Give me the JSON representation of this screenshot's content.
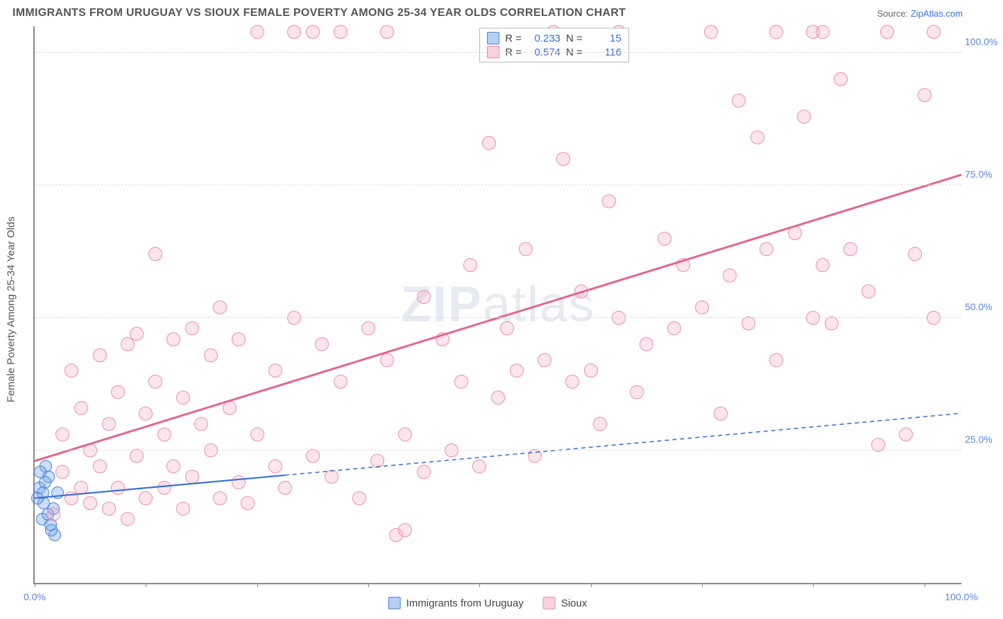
{
  "title": "IMMIGRANTS FROM URUGUAY VS SIOUX FEMALE POVERTY AMONG 25-34 YEAR OLDS CORRELATION CHART",
  "source_prefix": "Source: ",
  "source_link": "ZipAtlas.com",
  "ylabel": "Female Poverty Among 25-34 Year Olds",
  "watermark_bold": "ZIP",
  "watermark_rest": "atlas",
  "xlim": [
    0,
    100
  ],
  "ylim": [
    0,
    105
  ],
  "y_ticks": [
    25,
    50,
    75,
    100
  ],
  "y_tick_labels": [
    "25.0%",
    "50.0%",
    "75.0%",
    "100.0%"
  ],
  "x_ticks": [
    0,
    12,
    24,
    36,
    48,
    60,
    72,
    84,
    96
  ],
  "x_tick_labels_first": "0.0%",
  "x_tick_labels_last": "100.0%",
  "colors": {
    "blue_fill": "rgba(107,159,232,0.35)",
    "blue_stroke": "#4a85d6",
    "pink_fill": "rgba(244,160,185,0.28)",
    "pink_stroke": "#e98fae",
    "trend_pink": "#e5648e",
    "trend_blue": "#3b6fd6",
    "tick_text": "#5a86d8",
    "grid": "#ddd"
  },
  "series": [
    {
      "name": "Immigrants from Uruguay",
      "class": "blue",
      "R": "0.233",
      "N": "15",
      "trend": {
        "x1": 0,
        "y1": 16,
        "x2": 100,
        "y2": 32,
        "solid_until_x": 27,
        "dash": "6,5",
        "width": 2.2
      },
      "points": [
        [
          0.5,
          18
        ],
        [
          1,
          15
        ],
        [
          1.2,
          22
        ],
        [
          0.8,
          12
        ],
        [
          1.5,
          20
        ],
        [
          2,
          14
        ],
        [
          1.8,
          10
        ],
        [
          2.5,
          17
        ],
        [
          0.3,
          16
        ],
        [
          1.1,
          19
        ],
        [
          2.2,
          9
        ],
        [
          0.6,
          21
        ],
        [
          1.4,
          13
        ],
        [
          0.9,
          17
        ],
        [
          1.7,
          11
        ]
      ]
    },
    {
      "name": "Sioux",
      "class": "pink",
      "R": "0.574",
      "N": "116",
      "trend": {
        "x1": 0,
        "y1": 23,
        "x2": 100,
        "y2": 77,
        "solid_until_x": 100,
        "dash": "",
        "width": 3
      },
      "points": [
        [
          2,
          13
        ],
        [
          3,
          21
        ],
        [
          3,
          28
        ],
        [
          4,
          16
        ],
        [
          4,
          40
        ],
        [
          5,
          18
        ],
        [
          5,
          33
        ],
        [
          6,
          15
        ],
        [
          6,
          25
        ],
        [
          7,
          22
        ],
        [
          7,
          43
        ],
        [
          8,
          14
        ],
        [
          8,
          30
        ],
        [
          9,
          18
        ],
        [
          9,
          36
        ],
        [
          10,
          12
        ],
        [
          10,
          45
        ],
        [
          11,
          24
        ],
        [
          11,
          47
        ],
        [
          12,
          16
        ],
        [
          12,
          32
        ],
        [
          13,
          38
        ],
        [
          13,
          62
        ],
        [
          14,
          18
        ],
        [
          14,
          28
        ],
        [
          15,
          22
        ],
        [
          15,
          46
        ],
        [
          16,
          14
        ],
        [
          16,
          35
        ],
        [
          17,
          20
        ],
        [
          17,
          48
        ],
        [
          18,
          30
        ],
        [
          19,
          25
        ],
        [
          19,
          43
        ],
        [
          20,
          16
        ],
        [
          20,
          52
        ],
        [
          21,
          33
        ],
        [
          22,
          19
        ],
        [
          22,
          46
        ],
        [
          23,
          15
        ],
        [
          24,
          28
        ],
        [
          24,
          104
        ],
        [
          26,
          22
        ],
        [
          26,
          40
        ],
        [
          27,
          18
        ],
        [
          28,
          50
        ],
        [
          28,
          104
        ],
        [
          30,
          24
        ],
        [
          30,
          104
        ],
        [
          31,
          45
        ],
        [
          32,
          20
        ],
        [
          33,
          38
        ],
        [
          33,
          104
        ],
        [
          35,
          16
        ],
        [
          36,
          48
        ],
        [
          37,
          23
        ],
        [
          38,
          42
        ],
        [
          38,
          104
        ],
        [
          39,
          9
        ],
        [
          40,
          28
        ],
        [
          40,
          10
        ],
        [
          42,
          21
        ],
        [
          42,
          54
        ],
        [
          44,
          46
        ],
        [
          45,
          25
        ],
        [
          46,
          38
        ],
        [
          47,
          60
        ],
        [
          48,
          22
        ],
        [
          49,
          83
        ],
        [
          50,
          35
        ],
        [
          51,
          48
        ],
        [
          52,
          40
        ],
        [
          53,
          63
        ],
        [
          54,
          24
        ],
        [
          55,
          42
        ],
        [
          56,
          104
        ],
        [
          57,
          80
        ],
        [
          58,
          38
        ],
        [
          59,
          55
        ],
        [
          60,
          40
        ],
        [
          61,
          30
        ],
        [
          62,
          72
        ],
        [
          63,
          50
        ],
        [
          63,
          104
        ],
        [
          65,
          36
        ],
        [
          66,
          45
        ],
        [
          68,
          65
        ],
        [
          69,
          48
        ],
        [
          70,
          60
        ],
        [
          72,
          52
        ],
        [
          73,
          104
        ],
        [
          74,
          32
        ],
        [
          75,
          58
        ],
        [
          76,
          91
        ],
        [
          77,
          49
        ],
        [
          78,
          84
        ],
        [
          79,
          63
        ],
        [
          80,
          42
        ],
        [
          80,
          104
        ],
        [
          82,
          66
        ],
        [
          83,
          88
        ],
        [
          84,
          50
        ],
        [
          84,
          104
        ],
        [
          85,
          60
        ],
        [
          85,
          104
        ],
        [
          86,
          49
        ],
        [
          87,
          95
        ],
        [
          88,
          63
        ],
        [
          90,
          55
        ],
        [
          91,
          26
        ],
        [
          92,
          104
        ],
        [
          94,
          28
        ],
        [
          95,
          62
        ],
        [
          96,
          92
        ],
        [
          97,
          50
        ],
        [
          97,
          104
        ]
      ]
    }
  ],
  "stats_labels": {
    "R": "R =",
    "N": "N ="
  },
  "legend_items": [
    "Immigrants from Uruguay",
    "Sioux"
  ]
}
